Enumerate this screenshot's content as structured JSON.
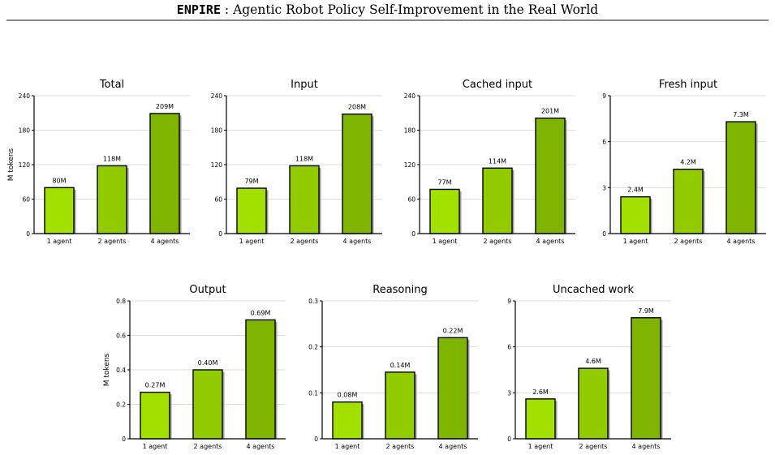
{
  "header": {
    "name": "ENPIRE",
    "title": ": Agentic Robot Policy Self-Improvement in the Real World"
  },
  "colors": {
    "bars": [
      "#a2e000",
      "#92cc00",
      "#7fb400"
    ],
    "shadow": "#9e9e9e",
    "grid": "#dddddd"
  },
  "chart_data": [
    {
      "type": "bar",
      "title": "Total",
      "ylabel": "M tokens",
      "categories": [
        "1 agent",
        "2 agents",
        "4 agents"
      ],
      "values": [
        80,
        118,
        209
      ],
      "labels": [
        "80M",
        "118M",
        "209M"
      ],
      "ylim": [
        0,
        240
      ],
      "yticks": [
        "0",
        "60",
        "120",
        "180",
        "240"
      ],
      "grid": true
    },
    {
      "type": "bar",
      "title": "Input",
      "ylabel": "",
      "categories": [
        "1 agent",
        "2 agents",
        "4 agents"
      ],
      "values": [
        79,
        118,
        208
      ],
      "labels": [
        "79M",
        "118M",
        "208M"
      ],
      "ylim": [
        0,
        240
      ],
      "yticks": [
        "0",
        "60",
        "120",
        "180",
        "240"
      ],
      "grid": true
    },
    {
      "type": "bar",
      "title": "Cached input",
      "ylabel": "",
      "categories": [
        "1 agent",
        "2 agents",
        "4 agents"
      ],
      "values": [
        77,
        114,
        201
      ],
      "labels": [
        "77M",
        "114M",
        "201M"
      ],
      "ylim": [
        0,
        240
      ],
      "yticks": [
        "0",
        "60",
        "120",
        "180",
        "240"
      ],
      "grid": true
    },
    {
      "type": "bar",
      "title": "Fresh input",
      "ylabel": "",
      "categories": [
        "1 agent",
        "2 agents",
        "4 agents"
      ],
      "values": [
        2.4,
        4.2,
        7.3
      ],
      "labels": [
        "2.4M",
        "4.2M",
        "7.3M"
      ],
      "ylim": [
        0,
        9
      ],
      "yticks": [
        "0",
        "3",
        "6",
        "9"
      ],
      "grid": true
    },
    {
      "type": "bar",
      "title": "Output",
      "ylabel": "M tokens",
      "categories": [
        "1 agent",
        "2 agents",
        "4 agents"
      ],
      "values": [
        0.27,
        0.4,
        0.69
      ],
      "labels": [
        "0.27M",
        "0.40M",
        "0.69M"
      ],
      "ylim": [
        0,
        0.8
      ],
      "yticks": [
        "0",
        "0.2",
        "0.4",
        "0.6",
        "0.8"
      ],
      "grid": true
    },
    {
      "type": "bar",
      "title": "Reasoning",
      "ylabel": "",
      "categories": [
        "1 agent",
        "2 agents",
        "4 agents"
      ],
      "values": [
        0.08,
        0.145,
        0.22
      ],
      "labels": [
        "0.08M",
        "0.14M",
        "0.22M"
      ],
      "ylim": [
        0,
        0.3
      ],
      "yticks": [
        "0",
        "0.1",
        "0.2",
        "0.3"
      ],
      "grid": true
    },
    {
      "type": "bar",
      "title": "Uncached work",
      "ylabel": "",
      "categories": [
        "1 agent",
        "2 agents",
        "4 agents"
      ],
      "values": [
        2.6,
        4.6,
        7.9
      ],
      "labels": [
        "2.6M",
        "4.6M",
        "7.9M"
      ],
      "ylim": [
        0,
        9
      ],
      "yticks": [
        "0",
        "3",
        "6",
        "9"
      ],
      "grid": true
    }
  ]
}
